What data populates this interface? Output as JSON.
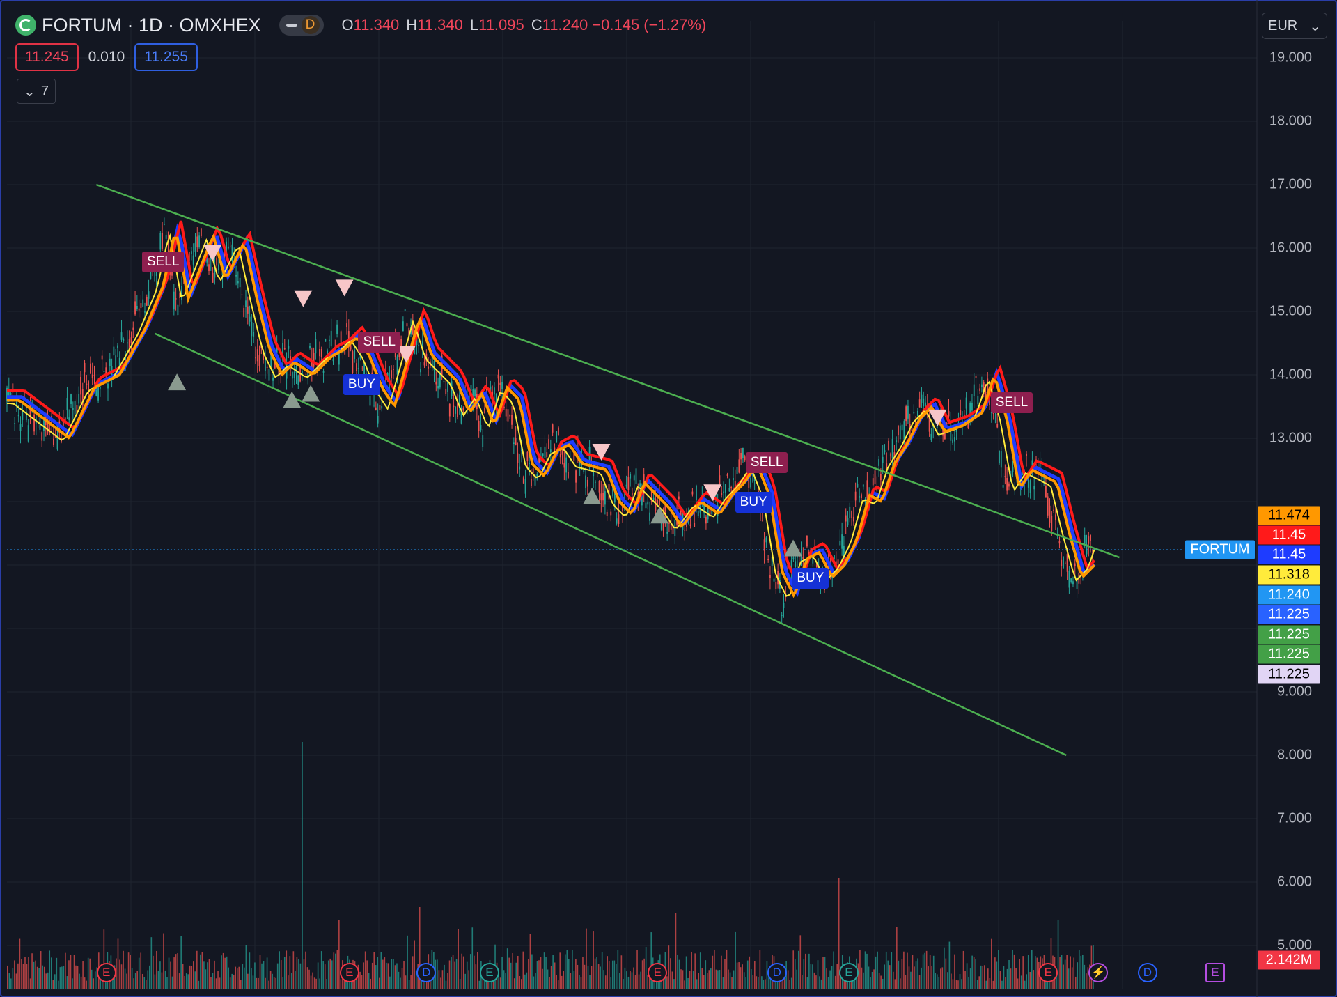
{
  "header": {
    "symbol_title": "FORTUM · 1D · OMXHEX",
    "interval_badge": "D",
    "ohlc": [
      {
        "label": "O",
        "value": "11.340"
      },
      {
        "label": "H",
        "value": "11.340"
      },
      {
        "label": "L",
        "value": "11.095"
      },
      {
        "label": "C",
        "value": "11.240"
      }
    ],
    "change": "−0.145 (−1.27%)",
    "bid": "11.245",
    "spread": "0.010",
    "ask": "11.255",
    "indicators_count": "7",
    "currency": "EUR"
  },
  "colors": {
    "background": "#131722",
    "channel": "#4caf50",
    "ema_red": "#ff1a1a",
    "ema_blue": "#1e3cff",
    "ema_yellow": "#ffeb3b",
    "ema_orange": "#ff9800",
    "candle_up": "#26a69a",
    "candle_down": "#ef5350"
  },
  "price_tags": [
    {
      "value": "11.474",
      "bg": "#ff9800",
      "fg": "#000000",
      "price": 11.78
    },
    {
      "value": "11.45",
      "bg": "#ff1a1a",
      "fg": "#ffffff",
      "price": 11.47
    },
    {
      "value": "11.45",
      "bg": "#1e3cff",
      "fg": "#ffffff",
      "price": 11.16
    },
    {
      "value": "11.318",
      "bg": "#ffeb3b",
      "fg": "#000000",
      "price": 10.85
    },
    {
      "value": "11.240",
      "bg": "#2196f3",
      "fg": "#ffffff",
      "price": 10.53
    },
    {
      "value": "11.225",
      "bg": "#2962ff",
      "fg": "#ffffff",
      "price": 10.22
    },
    {
      "value": "11.225",
      "bg": "#43a047",
      "fg": "#ffffff",
      "price": 9.9
    },
    {
      "value": "11.225",
      "bg": "#43a047",
      "fg": "#ffffff",
      "price": 9.59
    },
    {
      "value": "11.225",
      "bg": "#e1d5f5",
      "fg": "#000000",
      "price": 9.27
    },
    {
      "value": "2.142M",
      "bg": "#f23645",
      "fg": "#ffffff",
      "price": 4.77
    }
  ],
  "symbol_tag": "FORTUM",
  "signals": [
    {
      "text": "SELL",
      "type": "sell",
      "x": 0.1125,
      "price": 15.78
    },
    {
      "text": "SELL",
      "type": "sell",
      "x": 0.2855,
      "price": 14.52
    },
    {
      "text": "BUY",
      "type": "buy",
      "x": 0.2735,
      "price": 13.85
    },
    {
      "text": "SELL",
      "type": "sell",
      "x": 0.5955,
      "price": 12.61
    },
    {
      "text": "BUY",
      "type": "buy",
      "x": 0.587,
      "price": 11.99
    },
    {
      "text": "BUY",
      "type": "buy",
      "x": 0.6325,
      "price": 10.79
    },
    {
      "text": "SELL",
      "type": "sell",
      "x": 0.7915,
      "price": 13.56
    }
  ],
  "events": [
    {
      "letter": "E",
      "kind": "earnings",
      "x": 0.0795
    },
    {
      "letter": "E",
      "kind": "earnings",
      "x": 0.274
    },
    {
      "letter": "D",
      "kind": "dividend",
      "x": 0.3355
    },
    {
      "letter": "E",
      "kind": "earnings-past",
      "x": 0.386
    },
    {
      "letter": "E",
      "kind": "earnings",
      "x": 0.5205
    },
    {
      "letter": "D",
      "kind": "dividend",
      "x": 0.616
    },
    {
      "letter": "E",
      "kind": "earnings-past",
      "x": 0.6735
    },
    {
      "letter": "E",
      "kind": "earnings",
      "x": 0.833
    },
    {
      "letter": "⚡",
      "kind": "split",
      "x": 0.873
    },
    {
      "letter": "D",
      "kind": "dividend",
      "x": 0.9125
    },
    {
      "letter": "E",
      "kind": "future",
      "x": 0.9665
    }
  ],
  "chart_data": {
    "type": "candlestick",
    "title": "FORTUM · 1D · OMXHEX",
    "y_scale": "log",
    "ylim": [
      4.8,
      19.6
    ],
    "y_ticks": [
      "19.000",
      "18.000",
      "17.000",
      "16.000",
      "15.000",
      "14.000",
      "13.000",
      "9.000",
      "8.000",
      "7.000",
      "6.000",
      "5.000"
    ],
    "y_tick_values": [
      19,
      18,
      17,
      16,
      15,
      14,
      13,
      9,
      8,
      7,
      6,
      5
    ],
    "last_price": 11.24,
    "price_path": [
      [
        0.0,
        13.6
      ],
      [
        0.02,
        13.3
      ],
      [
        0.04,
        13.0
      ],
      [
        0.06,
        13.8
      ],
      [
        0.08,
        14.0
      ],
      [
        0.1,
        14.7
      ],
      [
        0.115,
        15.4
      ],
      [
        0.125,
        16.3
      ],
      [
        0.135,
        15.2
      ],
      [
        0.145,
        15.7
      ],
      [
        0.155,
        16.2
      ],
      [
        0.165,
        15.5
      ],
      [
        0.18,
        16.1
      ],
      [
        0.19,
        15.2
      ],
      [
        0.2,
        14.4
      ],
      [
        0.21,
        14.0
      ],
      [
        0.22,
        14.2
      ],
      [
        0.235,
        14.0
      ],
      [
        0.25,
        14.3
      ],
      [
        0.26,
        14.4
      ],
      [
        0.27,
        14.6
      ],
      [
        0.28,
        14.3
      ],
      [
        0.29,
        13.8
      ],
      [
        0.3,
        13.5
      ],
      [
        0.31,
        14.2
      ],
      [
        0.32,
        14.9
      ],
      [
        0.33,
        14.3
      ],
      [
        0.35,
        13.9
      ],
      [
        0.36,
        13.4
      ],
      [
        0.37,
        13.7
      ],
      [
        0.38,
        13.2
      ],
      [
        0.39,
        13.8
      ],
      [
        0.4,
        13.6
      ],
      [
        0.41,
        12.6
      ],
      [
        0.42,
        12.4
      ],
      [
        0.43,
        12.8
      ],
      [
        0.44,
        12.9
      ],
      [
        0.45,
        12.6
      ],
      [
        0.47,
        12.5
      ],
      [
        0.48,
        12.0
      ],
      [
        0.49,
        11.8
      ],
      [
        0.5,
        12.3
      ],
      [
        0.51,
        12.1
      ],
      [
        0.52,
        11.9
      ],
      [
        0.53,
        11.6
      ],
      [
        0.545,
        12.0
      ],
      [
        0.56,
        11.8
      ],
      [
        0.57,
        12.1
      ],
      [
        0.58,
        12.3
      ],
      [
        0.59,
        12.6
      ],
      [
        0.6,
        12.1
      ],
      [
        0.61,
        10.9
      ],
      [
        0.62,
        10.5
      ],
      [
        0.63,
        11.1
      ],
      [
        0.64,
        11.2
      ],
      [
        0.65,
        10.8
      ],
      [
        0.66,
        11.0
      ],
      [
        0.67,
        11.4
      ],
      [
        0.68,
        12.1
      ],
      [
        0.69,
        12.0
      ],
      [
        0.7,
        12.6
      ],
      [
        0.71,
        12.9
      ],
      [
        0.72,
        13.3
      ],
      [
        0.73,
        13.5
      ],
      [
        0.74,
        13.1
      ],
      [
        0.755,
        13.2
      ],
      [
        0.77,
        13.4
      ],
      [
        0.78,
        14.0
      ],
      [
        0.79,
        13.3
      ],
      [
        0.8,
        12.2
      ],
      [
        0.81,
        12.5
      ],
      [
        0.82,
        12.4
      ],
      [
        0.83,
        12.3
      ],
      [
        0.84,
        11.5
      ],
      [
        0.85,
        10.8
      ],
      [
        0.86,
        11.0
      ],
      [
        0.865,
        11.3
      ],
      [
        0.87,
        11.24
      ]
    ],
    "channel_lines": [
      {
        "from": [
          0.0715,
          17.0
        ],
        "to": [
          0.89,
          11.12
        ]
      },
      {
        "from": [
          0.1185,
          14.65
        ],
        "to": [
          0.8475,
          8.0
        ]
      }
    ],
    "up_markers": [
      [
        0.136,
        13.9
      ],
      [
        0.228,
        13.62
      ],
      [
        0.243,
        13.72
      ],
      [
        0.468,
        12.1
      ],
      [
        0.522,
        11.8
      ],
      [
        0.629,
        11.28
      ]
    ],
    "down_markers": [
      [
        0.1645,
        15.92
      ],
      [
        0.237,
        15.2
      ],
      [
        0.27,
        15.37
      ],
      [
        0.3195,
        14.32
      ],
      [
        0.4755,
        12.78
      ],
      [
        0.5645,
        12.14
      ],
      [
        0.7445,
        13.32
      ]
    ],
    "volume_peak_value": "2.142M"
  }
}
